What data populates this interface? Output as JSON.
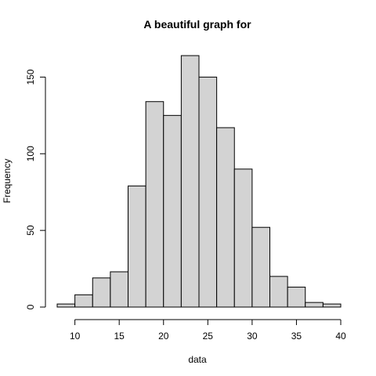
{
  "chart_data": {
    "type": "bar",
    "title": "A beautiful graph for",
    "xlabel": "data",
    "ylabel": "Frequency",
    "bin_edges": [
      8,
      10,
      12,
      14,
      16,
      18,
      20,
      22,
      24,
      26,
      28,
      30,
      32,
      34,
      36,
      38,
      40
    ],
    "values": [
      2,
      8,
      19,
      23,
      79,
      134,
      125,
      164,
      150,
      117,
      90,
      52,
      20,
      13,
      3,
      2
    ],
    "xlim": [
      8,
      40
    ],
    "ylim": [
      0,
      164
    ],
    "x_ticks": [
      10,
      15,
      20,
      25,
      30,
      35,
      40
    ],
    "y_ticks": [
      0,
      50,
      100,
      150
    ],
    "grid": false,
    "bar_color": "#d3d3d3",
    "edge_color": "#000000"
  }
}
